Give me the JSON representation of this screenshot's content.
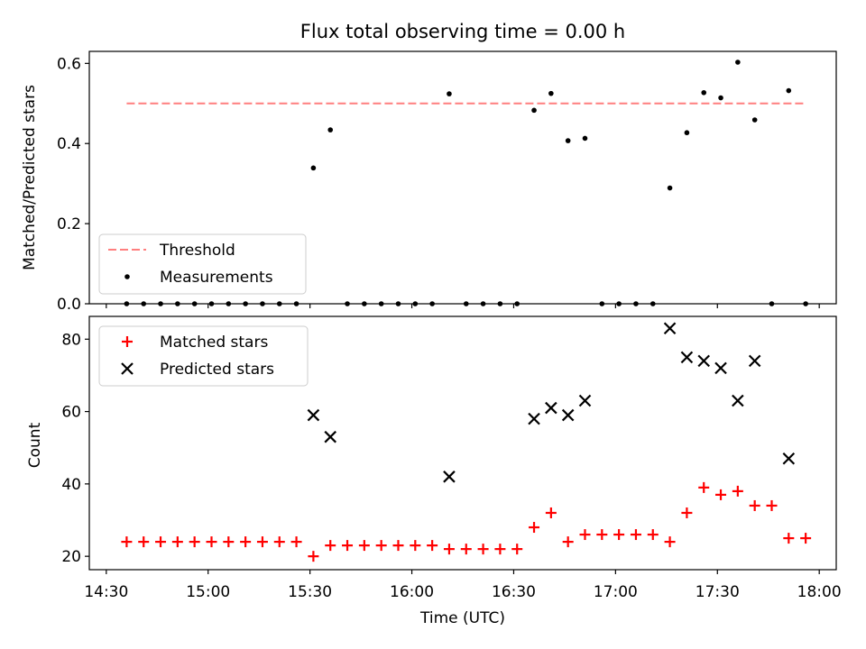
{
  "chart_data": [
    {
      "type": "scatter",
      "title": "Flux total observing time = 0.00 h",
      "xlabel": "",
      "ylabel": "Matched/Predicted stars",
      "ylim": [
        0,
        0.63
      ],
      "yticks": [
        0.0,
        0.2,
        0.4,
        0.6
      ],
      "ytick_labels": [
        "0.0",
        "0.2",
        "0.4",
        "0.6"
      ],
      "xlim": [
        "14:25",
        "18:05"
      ],
      "legend_placement": "lower-left",
      "threshold": {
        "name": "Threshold",
        "value": 0.5,
        "x_start": "14:36",
        "x_end": "17:56",
        "color": "#ff7f7f"
      },
      "series": [
        {
          "name": "Measurements",
          "color": "#000000",
          "points": [
            [
              "14:36",
              0
            ],
            [
              "14:41",
              0
            ],
            [
              "14:46",
              0
            ],
            [
              "14:51",
              0
            ],
            [
              "14:56",
              0
            ],
            [
              "15:01",
              0
            ],
            [
              "15:06",
              0
            ],
            [
              "15:11",
              0
            ],
            [
              "15:16",
              0
            ],
            [
              "15:21",
              0
            ],
            [
              "15:26",
              0
            ],
            [
              "15:31",
              0.339
            ],
            [
              "15:36",
              0.434
            ],
            [
              "15:41",
              0
            ],
            [
              "15:46",
              0
            ],
            [
              "15:51",
              0
            ],
            [
              "15:56",
              0
            ],
            [
              "16:01",
              0
            ],
            [
              "16:06",
              0
            ],
            [
              "16:11",
              0.524
            ],
            [
              "16:16",
              0
            ],
            [
              "16:21",
              0
            ],
            [
              "16:26",
              0
            ],
            [
              "16:31",
              0
            ],
            [
              "16:36",
              0.483
            ],
            [
              "16:41",
              0.525
            ],
            [
              "16:46",
              0.407
            ],
            [
              "16:51",
              0.413
            ],
            [
              "16:56",
              0
            ],
            [
              "17:01",
              0
            ],
            [
              "17:06",
              0
            ],
            [
              "17:11",
              0
            ],
            [
              "17:16",
              0.289
            ],
            [
              "17:21",
              0.427
            ],
            [
              "17:26",
              0.527
            ],
            [
              "17:31",
              0.514
            ],
            [
              "17:36",
              0.603
            ],
            [
              "17:41",
              0.459
            ],
            [
              "17:46",
              0
            ],
            [
              "17:51",
              0.532
            ],
            [
              "17:56",
              0
            ]
          ]
        }
      ]
    },
    {
      "type": "scatter",
      "title": "",
      "xlabel": "Time (UTC)",
      "ylabel": "Count",
      "ylim": [
        16.3,
        86.3
      ],
      "yticks": [
        20,
        40,
        60,
        80
      ],
      "ytick_labels": [
        "20",
        "40",
        "60",
        "80"
      ],
      "xlim": [
        "14:25",
        "18:05"
      ],
      "xticks": [
        "14:30",
        "15:00",
        "15:30",
        "16:00",
        "16:30",
        "17:00",
        "17:30",
        "18:00"
      ],
      "xtick_labels": [
        "14:30",
        "15:00",
        "15:30",
        "16:00",
        "16:30",
        "17:00",
        "17:30",
        "18:00"
      ],
      "legend_placement": "upper-left",
      "series": [
        {
          "name": "Matched stars",
          "marker": "plus",
          "color": "#ff0000",
          "points": [
            [
              "14:36",
              24
            ],
            [
              "14:41",
              24
            ],
            [
              "14:46",
              24
            ],
            [
              "14:51",
              24
            ],
            [
              "14:56",
              24
            ],
            [
              "15:01",
              24
            ],
            [
              "15:06",
              24
            ],
            [
              "15:11",
              24
            ],
            [
              "15:16",
              24
            ],
            [
              "15:21",
              24
            ],
            [
              "15:26",
              24
            ],
            [
              "15:31",
              20
            ],
            [
              "15:36",
              23
            ],
            [
              "15:41",
              23
            ],
            [
              "15:46",
              23
            ],
            [
              "15:51",
              23
            ],
            [
              "15:56",
              23
            ],
            [
              "16:01",
              23
            ],
            [
              "16:06",
              23
            ],
            [
              "16:11",
              22
            ],
            [
              "16:16",
              22
            ],
            [
              "16:21",
              22
            ],
            [
              "16:26",
              22
            ],
            [
              "16:31",
              22
            ],
            [
              "16:36",
              28
            ],
            [
              "16:41",
              32
            ],
            [
              "16:46",
              24
            ],
            [
              "16:51",
              26
            ],
            [
              "16:56",
              26
            ],
            [
              "17:01",
              26
            ],
            [
              "17:06",
              26
            ],
            [
              "17:11",
              26
            ],
            [
              "17:16",
              24
            ],
            [
              "17:21",
              32
            ],
            [
              "17:26",
              39
            ],
            [
              "17:31",
              37
            ],
            [
              "17:36",
              38
            ],
            [
              "17:41",
              34
            ],
            [
              "17:46",
              34
            ],
            [
              "17:51",
              25
            ],
            [
              "17:56",
              25
            ]
          ]
        },
        {
          "name": "Predicted stars",
          "marker": "x",
          "color": "#000000",
          "points": [
            [
              "15:31",
              59
            ],
            [
              "15:36",
              53
            ],
            [
              "16:11",
              42
            ],
            [
              "16:36",
              58
            ],
            [
              "16:41",
              61
            ],
            [
              "16:46",
              59
            ],
            [
              "16:51",
              63
            ],
            [
              "17:16",
              83
            ],
            [
              "17:21",
              75
            ],
            [
              "17:26",
              74
            ],
            [
              "17:31",
              72
            ],
            [
              "17:36",
              63
            ],
            [
              "17:41",
              74
            ],
            [
              "17:51",
              47
            ]
          ]
        }
      ]
    }
  ]
}
